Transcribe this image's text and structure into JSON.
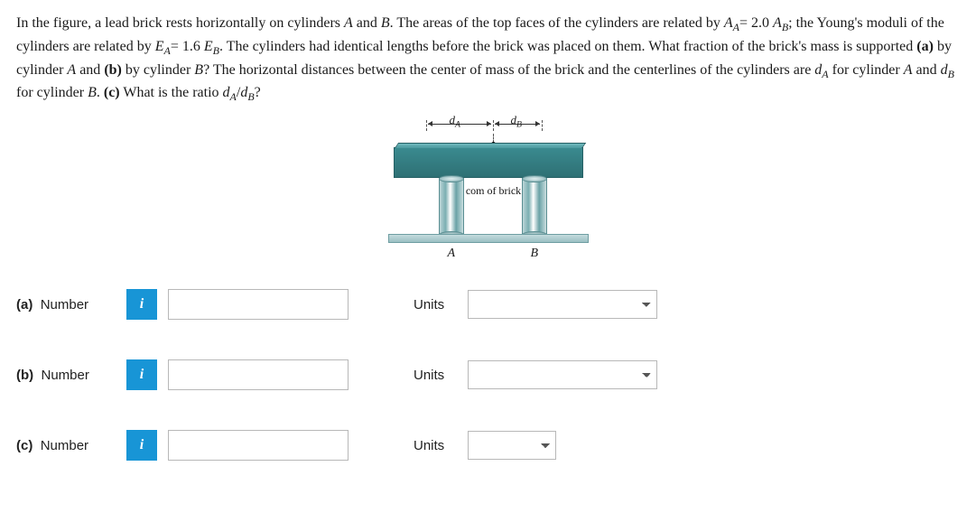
{
  "problem": {
    "html": "In the figure, a lead brick rests horizontally on cylinders <i>A</i> and <i>B</i>. The areas of the top faces of the cylinders are related by <i>A<sub>A</sub></i>= 2.0 <i>A<sub>B</sub></i>; the Young's moduli of the cylinders are related by <i>E<sub>A</sub></i>= 1.6 <i>E<sub>B</sub></i>. The cylinders had identical lengths before the brick was placed on them. What fraction of the brick's mass is supported <b>(a)</b> by cylinder <i>A</i> and <b>(b)</b> by cylinder <i>B</i>? The horizontal distances between the center of mass of the brick and the centerlines of the cylinders are <i>d<sub>A</sub></i> for cylinder <i>A</i> and <i>d<sub>B</sub></i> for cylinder <i>B</i>. <b>(c)</b> What is the ratio <i>d<sub>A</sub></i>/<i>d<sub>B</sub></i>?"
  },
  "figure": {
    "d_a_label": "d<sub>A</sub>",
    "d_b_label": "d<sub>B</sub>",
    "com_label": "com of brick",
    "cyl_a": "A",
    "cyl_b": "B",
    "colors": {
      "brick_top": "#6fb8bc",
      "brick_bottom": "#2e7074",
      "cyl_light": "#bcd6d8",
      "cyl_dark": "#6aa2a6",
      "base": "#9cc0c3"
    }
  },
  "answers": {
    "a": {
      "part": "(a)",
      "label": "Number",
      "value": "",
      "units_label": "Units",
      "units_value": ""
    },
    "b": {
      "part": "(b)",
      "label": "Number",
      "value": "",
      "units_label": "Units",
      "units_value": ""
    },
    "c": {
      "part": "(c)",
      "label": "Number",
      "value": "",
      "units_label": "Units",
      "units_value": ""
    }
  },
  "info_badge": "i"
}
